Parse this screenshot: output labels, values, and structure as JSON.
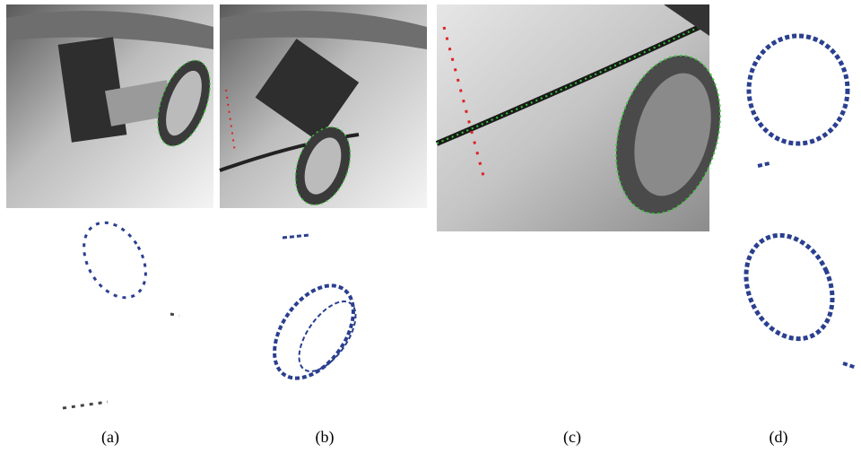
{
  "figure": {
    "subfigures": [
      {
        "label": "(a)"
      },
      {
        "label": "(b)"
      },
      {
        "label": "(c)"
      },
      {
        "label": "(d)"
      }
    ]
  }
}
